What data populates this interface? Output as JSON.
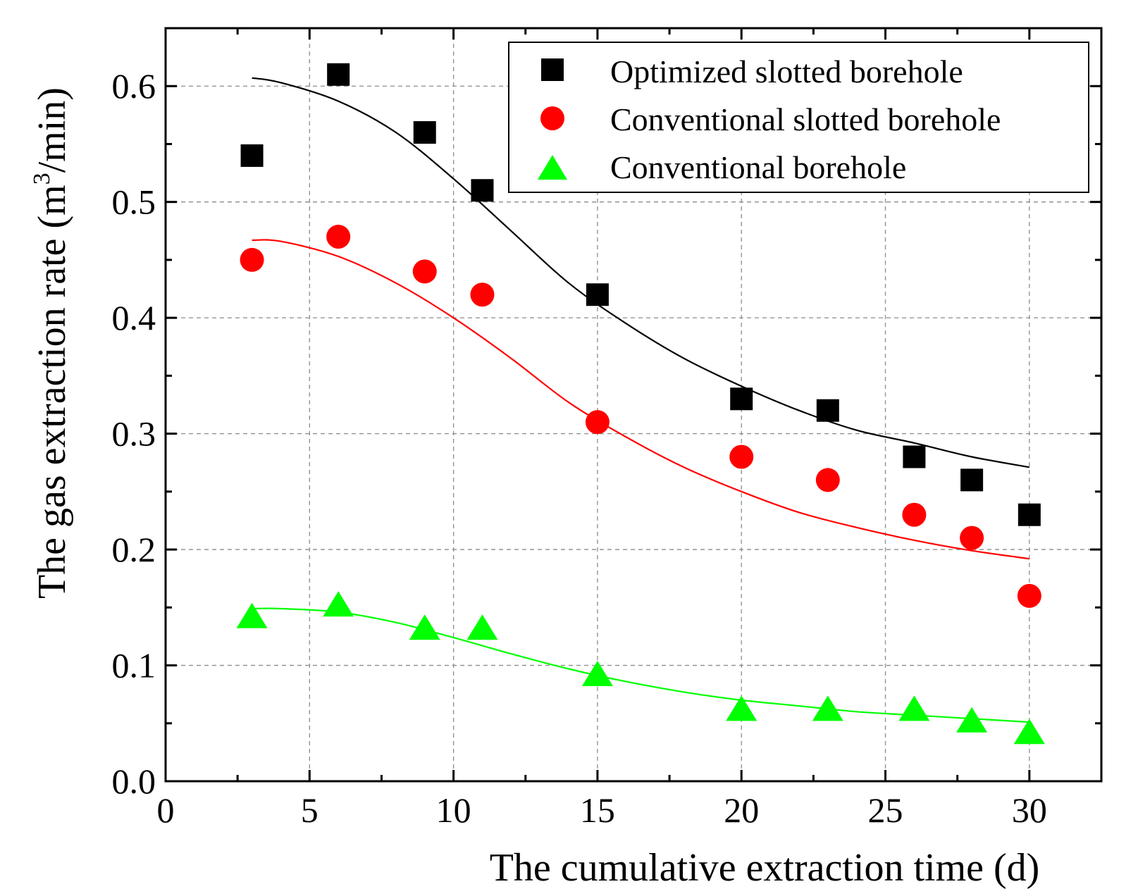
{
  "chart_data": {
    "type": "scatter",
    "title": "",
    "xlabel": "The cumulative extraction time (d)",
    "ylabel_main": "The gas extraction rate (m",
    "ylabel_sup": "3",
    "ylabel_end": "/min)",
    "xlim": [
      0,
      32.5
    ],
    "ylim": [
      0,
      0.65
    ],
    "x_ticks": [
      0,
      5,
      10,
      15,
      20,
      25,
      30
    ],
    "x_tick_labels": [
      "0",
      "5",
      "10",
      "15",
      "20",
      "25",
      "30"
    ],
    "y_ticks": [
      0.0,
      0.1,
      0.2,
      0.3,
      0.4,
      0.5,
      0.6
    ],
    "y_tick_labels": [
      "0.0",
      "0.1",
      "0.2",
      "0.3",
      "0.4",
      "0.5",
      "0.6"
    ],
    "grid": true,
    "legend_position": "top-right",
    "x": [
      3,
      6,
      9,
      11,
      15,
      20,
      23,
      26,
      28,
      30
    ],
    "series": [
      {
        "name": "Optimized slotted borehole",
        "marker": "square",
        "color": "#000000",
        "values": [
          0.54,
          0.61,
          0.56,
          0.51,
          0.42,
          0.33,
          0.32,
          0.28,
          0.26,
          0.23
        ],
        "fit": {
          "x": [
            3,
            4,
            6,
            8,
            10,
            12,
            14,
            16,
            18,
            20,
            22,
            24,
            26,
            28,
            30
          ],
          "y": [
            0.607,
            0.603,
            0.587,
            0.56,
            0.52,
            0.475,
            0.43,
            0.395,
            0.365,
            0.341,
            0.32,
            0.303,
            0.292,
            0.28,
            0.271
          ]
        }
      },
      {
        "name": "Conventional slotted borehole",
        "marker": "circle",
        "color": "#ff0000",
        "values": [
          0.45,
          0.47,
          0.44,
          0.42,
          0.31,
          0.28,
          0.26,
          0.23,
          0.21,
          0.16
        ],
        "fit": {
          "x": [
            3,
            4,
            6,
            8,
            10,
            12,
            14,
            16,
            18,
            20,
            22,
            24,
            26,
            28,
            30
          ],
          "y": [
            0.467,
            0.466,
            0.453,
            0.43,
            0.4,
            0.365,
            0.327,
            0.297,
            0.271,
            0.25,
            0.232,
            0.219,
            0.208,
            0.199,
            0.192
          ]
        }
      },
      {
        "name": "Conventional borehole",
        "marker": "triangle",
        "color": "#00ff00",
        "values": [
          0.14,
          0.15,
          0.13,
          0.13,
          0.09,
          0.06,
          0.06,
          0.06,
          0.05,
          0.04
        ],
        "fit": {
          "x": [
            3,
            4,
            6,
            8,
            10,
            12,
            14,
            16,
            18,
            20,
            22,
            24,
            26,
            28,
            30
          ],
          "y": [
            0.149,
            0.149,
            0.146,
            0.137,
            0.124,
            0.11,
            0.097,
            0.086,
            0.077,
            0.07,
            0.065,
            0.06,
            0.057,
            0.054,
            0.051
          ]
        }
      }
    ]
  }
}
